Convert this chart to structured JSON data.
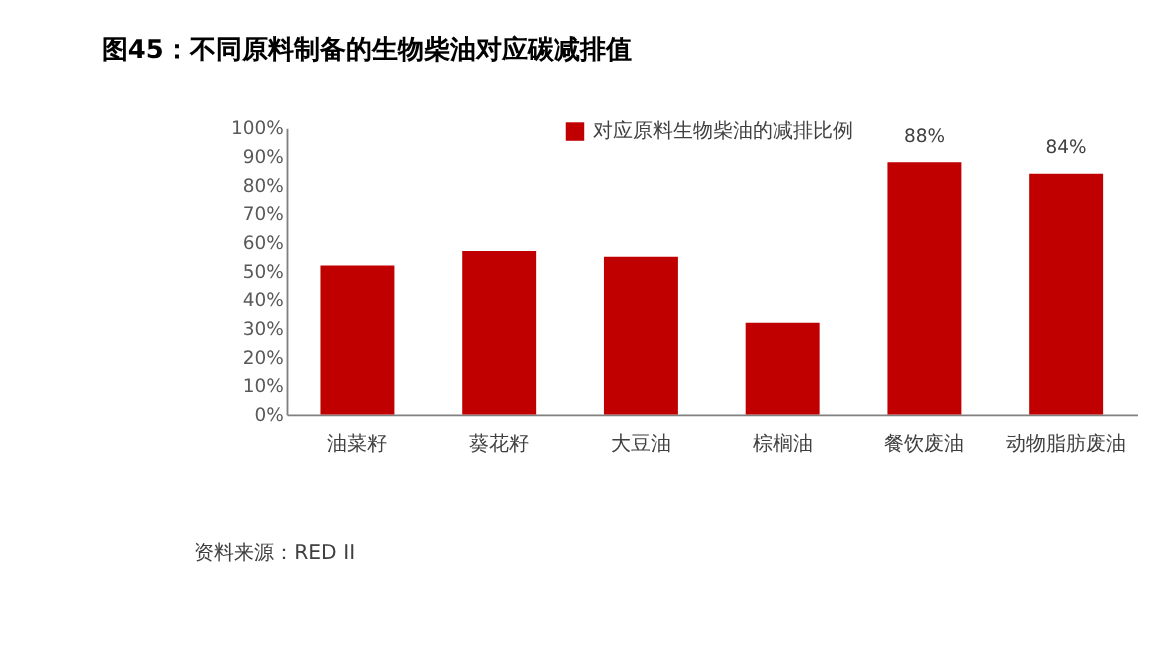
{
  "chart_data": {
    "type": "bar",
    "title": "图45：不同原料制备的生物柴油对应碳减排值",
    "categories": [
      "油菜籽",
      "葵花籽",
      "大豆油",
      "棕榈油",
      "餐饮废油",
      "动物脂肪废油"
    ],
    "series": [
      {
        "name": "对应原料生物柴油的减排比例",
        "color": "#c00000",
        "values": [
          52,
          57,
          55,
          32,
          88,
          84
        ],
        "value_labels": [
          null,
          null,
          null,
          null,
          "88%",
          "84%"
        ]
      }
    ],
    "ylim": [
      0,
      100
    ],
    "yticks": [
      {
        "value": 0,
        "label": "0%"
      },
      {
        "value": 10,
        "label": "10%"
      },
      {
        "value": 20,
        "label": "20%"
      },
      {
        "value": 30,
        "label": "30%"
      },
      {
        "value": 40,
        "label": "40%"
      },
      {
        "value": 50,
        "label": "50%"
      },
      {
        "value": 60,
        "label": "60%"
      },
      {
        "value": 70,
        "label": "70%"
      },
      {
        "value": 80,
        "label": "80%"
      },
      {
        "value": 90,
        "label": "90%"
      },
      {
        "value": 100,
        "label": "100%"
      }
    ],
    "legend": "top",
    "grid": false,
    "annotations": [
      "资料来源：RED II"
    ]
  }
}
